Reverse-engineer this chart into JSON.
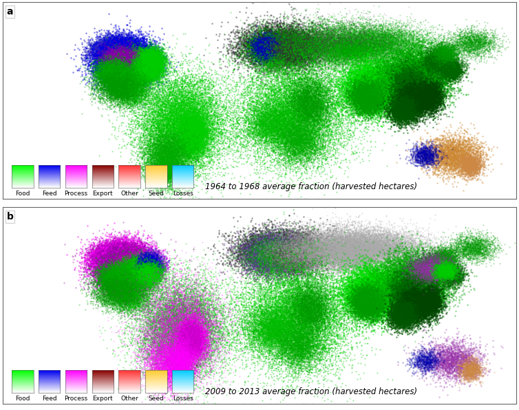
{
  "panel_a_label": "a",
  "panel_b_label": "b",
  "panel_a_title": "1964 to 1968 average fraction (harvested hectares)",
  "panel_b_title": "2009 to 2013 average fraction (harvested hectares)",
  "legend_labels": [
    "Food",
    "Feed",
    "Process",
    "Export",
    "Other",
    "Seed",
    "Losses"
  ],
  "legend_top_colors": [
    "#00ff00",
    "#0000ee",
    "#ff00ff",
    "#880000",
    "#ff3333",
    "#ffcc33",
    "#00ccff"
  ],
  "fig_width": 7.54,
  "fig_height": 5.96,
  "background_color": "#ffffff",
  "panel_label_fontsize": 10,
  "title_fontsize": 8.5,
  "legend_fontsize": 6.5,
  "map_regions_a": [
    {
      "lon": -100,
      "lat": 48,
      "slon": 8,
      "slat": 5,
      "color": "#3333bb",
      "alpha": 0.55,
      "n": 8000,
      "s": 3
    },
    {
      "lon": -95,
      "lat": 42,
      "slon": 10,
      "slat": 8,
      "color": "#0000dd",
      "alpha": 0.5,
      "n": 12000,
      "s": 3
    },
    {
      "lon": -87,
      "lat": 40,
      "slon": 6,
      "slat": 5,
      "color": "#0000cc",
      "alpha": 0.5,
      "n": 6000,
      "s": 3
    },
    {
      "lon": -82,
      "lat": 38,
      "slon": 5,
      "slat": 5,
      "color": "#00cc00",
      "alpha": 0.5,
      "n": 5000,
      "s": 3
    },
    {
      "lon": -90,
      "lat": 35,
      "slon": 8,
      "slat": 6,
      "color": "#00bb00",
      "alpha": 0.45,
      "n": 5000,
      "s": 3
    },
    {
      "lon": -98,
      "lat": 44,
      "slon": 6,
      "slat": 4,
      "color": "#8800aa",
      "alpha": 0.3,
      "n": 3000,
      "s": 3
    },
    {
      "lon": -75,
      "lat": 43,
      "slon": 4,
      "slat": 4,
      "color": "#00cc00",
      "alpha": 0.4,
      "n": 3000,
      "s": 3
    },
    {
      "lon": -78,
      "lat": 36,
      "slon": 5,
      "slat": 4,
      "color": "#00cc00",
      "alpha": 0.4,
      "n": 3000,
      "s": 3
    },
    {
      "lon": -102,
      "lat": 33,
      "slon": 7,
      "slat": 5,
      "color": "#00aa00",
      "alpha": 0.4,
      "n": 3000,
      "s": 3
    },
    {
      "lon": -90,
      "lat": 20,
      "slon": 7,
      "slat": 6,
      "color": "#00aa00",
      "alpha": 0.4,
      "n": 3000,
      "s": 2
    },
    {
      "lon": -100,
      "lat": 22,
      "slon": 8,
      "slat": 6,
      "color": "#009900",
      "alpha": 0.4,
      "n": 3000,
      "s": 2
    },
    {
      "lon": -55,
      "lat": -5,
      "slon": 15,
      "slat": 18,
      "color": "#00cc00",
      "alpha": 0.45,
      "n": 14000,
      "s": 2
    },
    {
      "lon": -47,
      "lat": -12,
      "slon": 5,
      "slat": 8,
      "color": "#00cc00",
      "alpha": 0.5,
      "n": 5000,
      "s": 2
    },
    {
      "lon": -65,
      "lat": -30,
      "slon": 8,
      "slat": 10,
      "color": "#00aa00",
      "alpha": 0.4,
      "n": 5000,
      "s": 2
    },
    {
      "lon": -68,
      "lat": -40,
      "slon": 5,
      "slat": 5,
      "color": "#00aa00",
      "alpha": 0.3,
      "n": 2000,
      "s": 2
    },
    {
      "lon": 15,
      "lat": 52,
      "slon": 15,
      "slat": 8,
      "color": "#222222",
      "alpha": 0.45,
      "n": 8000,
      "s": 3
    },
    {
      "lon": 10,
      "lat": 50,
      "slon": 10,
      "slat": 7,
      "color": "#00aa00",
      "alpha": 0.3,
      "n": 4000,
      "s": 3
    },
    {
      "lon": 5,
      "lat": 52,
      "slon": 5,
      "slat": 4,
      "color": "#0000bb",
      "alpha": 0.4,
      "n": 2000,
      "s": 3
    },
    {
      "lon": 25,
      "lat": 50,
      "slon": 8,
      "slat": 5,
      "color": "#333333",
      "alpha": 0.4,
      "n": 3000,
      "s": 3
    },
    {
      "lon": 55,
      "lat": 54,
      "slon": 22,
      "slat": 8,
      "color": "#00aa00",
      "alpha": 0.35,
      "n": 8000,
      "s": 2
    },
    {
      "lon": 85,
      "lat": 56,
      "slon": 18,
      "slat": 6,
      "color": "#00aa00",
      "alpha": 0.3,
      "n": 5000,
      "s": 2
    },
    {
      "lon": 55,
      "lat": 54,
      "slon": 22,
      "slat": 8,
      "color": "#444444",
      "alpha": 0.2,
      "n": 4000,
      "s": 2
    },
    {
      "lon": 65,
      "lat": 48,
      "slon": 12,
      "slat": 5,
      "color": "#00aa00",
      "alpha": 0.3,
      "n": 3000,
      "s": 2
    },
    {
      "lon": 25,
      "lat": 5,
      "slon": 20,
      "slat": 20,
      "color": "#00cc00",
      "alpha": 0.45,
      "n": 12000,
      "s": 2
    },
    {
      "lon": 35,
      "lat": 10,
      "slon": 8,
      "slat": 10,
      "color": "#009900",
      "alpha": 0.4,
      "n": 4000,
      "s": 2
    },
    {
      "lon": 10,
      "lat": -5,
      "slon": 10,
      "slat": 8,
      "color": "#00bb00",
      "alpha": 0.4,
      "n": 4000,
      "s": 2
    },
    {
      "lon": 28,
      "lat": -18,
      "slon": 8,
      "slat": 8,
      "color": "#00aa00",
      "alpha": 0.4,
      "n": 3000,
      "s": 2
    },
    {
      "lon": 80,
      "lat": 22,
      "slon": 10,
      "slat": 9,
      "color": "#00dd00",
      "alpha": 0.55,
      "n": 10000,
      "s": 3
    },
    {
      "lon": 76,
      "lat": 15,
      "slon": 6,
      "slat": 6,
      "color": "#009900",
      "alpha": 0.5,
      "n": 4000,
      "s": 3
    },
    {
      "lon": 108,
      "lat": 32,
      "slon": 12,
      "slat": 10,
      "color": "#00aa00",
      "alpha": 0.5,
      "n": 8000,
      "s": 3
    },
    {
      "lon": 115,
      "lat": 25,
      "slon": 8,
      "slat": 8,
      "color": "#009900",
      "alpha": 0.5,
      "n": 5000,
      "s": 3
    },
    {
      "lon": 105,
      "lat": 20,
      "slon": 6,
      "slat": 8,
      "color": "#006600",
      "alpha": 0.55,
      "n": 4000,
      "s": 3
    },
    {
      "lon": 108,
      "lat": 12,
      "slon": 5,
      "slat": 6,
      "color": "#004400",
      "alpha": 0.6,
      "n": 3000,
      "s": 3
    },
    {
      "lon": 100,
      "lat": 5,
      "slon": 5,
      "slat": 5,
      "color": "#005500",
      "alpha": 0.6,
      "n": 2000,
      "s": 3
    },
    {
      "lon": 120,
      "lat": 15,
      "slon": 4,
      "slat": 6,
      "color": "#004400",
      "alpha": 0.55,
      "n": 2000,
      "s": 3
    },
    {
      "lon": 135,
      "lat": 35,
      "slon": 4,
      "slat": 4,
      "color": "#006600",
      "alpha": 0.5,
      "n": 1500,
      "s": 3
    },
    {
      "lon": 125,
      "lat": 42,
      "slon": 5,
      "slat": 4,
      "color": "#006600",
      "alpha": 0.5,
      "n": 1500,
      "s": 3
    },
    {
      "lon": 130,
      "lat": 48,
      "slon": 5,
      "slat": 4,
      "color": "#009900",
      "alpha": 0.4,
      "n": 1500,
      "s": 2
    },
    {
      "lon": 150,
      "lat": 55,
      "slon": 8,
      "slat": 5,
      "color": "#009900",
      "alpha": 0.35,
      "n": 2000,
      "s": 2
    },
    {
      "lon": 135,
      "lat": -28,
      "slon": 10,
      "slat": 7,
      "color": "#cc8833",
      "alpha": 0.45,
      "n": 3000,
      "s": 3
    },
    {
      "lon": 148,
      "lat": -35,
      "slon": 4,
      "slat": 4,
      "color": "#cc8844",
      "alpha": 0.4,
      "n": 1500,
      "s": 3
    },
    {
      "lon": 116,
      "lat": -28,
      "slon": 5,
      "slat": 4,
      "color": "#0000aa",
      "alpha": 0.35,
      "n": 1000,
      "s": 3
    }
  ],
  "map_regions_b": [
    {
      "lon": -100,
      "lat": 48,
      "slon": 8,
      "slat": 5,
      "color": "#cc00cc",
      "alpha": 0.5,
      "n": 8000,
      "s": 3
    },
    {
      "lon": -95,
      "lat": 42,
      "slon": 10,
      "slat": 8,
      "color": "#ff00ff",
      "alpha": 0.5,
      "n": 12000,
      "s": 3
    },
    {
      "lon": -95,
      "lat": 42,
      "slon": 10,
      "slat": 8,
      "color": "#9900aa",
      "alpha": 0.35,
      "n": 8000,
      "s": 3
    },
    {
      "lon": -87,
      "lat": 40,
      "slon": 6,
      "slat": 5,
      "color": "#bb00bb",
      "alpha": 0.45,
      "n": 6000,
      "s": 3
    },
    {
      "lon": -82,
      "lat": 38,
      "slon": 5,
      "slat": 5,
      "color": "#00cc00",
      "alpha": 0.4,
      "n": 4000,
      "s": 3
    },
    {
      "lon": -90,
      "lat": 35,
      "slon": 8,
      "slat": 6,
      "color": "#00bb00",
      "alpha": 0.35,
      "n": 4000,
      "s": 3
    },
    {
      "lon": -75,
      "lat": 43,
      "slon": 4,
      "slat": 4,
      "color": "#9933cc",
      "alpha": 0.4,
      "n": 2000,
      "s": 3
    },
    {
      "lon": -77,
      "lat": 43,
      "slon": 4,
      "slat": 4,
      "color": "#0000cc",
      "alpha": 0.35,
      "n": 2000,
      "s": 3
    },
    {
      "lon": -78,
      "lat": 36,
      "slon": 5,
      "slat": 4,
      "color": "#00cc00",
      "alpha": 0.35,
      "n": 2500,
      "s": 3
    },
    {
      "lon": -102,
      "lat": 33,
      "slon": 7,
      "slat": 5,
      "color": "#00aa00",
      "alpha": 0.35,
      "n": 2500,
      "s": 3
    },
    {
      "lon": -90,
      "lat": 20,
      "slon": 7,
      "slat": 6,
      "color": "#00aa00",
      "alpha": 0.4,
      "n": 3000,
      "s": 2
    },
    {
      "lon": -100,
      "lat": 22,
      "slon": 8,
      "slat": 6,
      "color": "#009900",
      "alpha": 0.4,
      "n": 3000,
      "s": 2
    },
    {
      "lon": -55,
      "lat": -5,
      "slon": 15,
      "slat": 18,
      "color": "#00cc00",
      "alpha": 0.4,
      "n": 12000,
      "s": 2
    },
    {
      "lon": -55,
      "lat": -5,
      "slon": 15,
      "slat": 18,
      "color": "#ff00ff",
      "alpha": 0.25,
      "n": 8000,
      "s": 2
    },
    {
      "lon": -47,
      "lat": -12,
      "slon": 5,
      "slat": 8,
      "color": "#ff00ff",
      "alpha": 0.4,
      "n": 5000,
      "s": 2
    },
    {
      "lon": -48,
      "lat": -12,
      "slon": 4,
      "slat": 6,
      "color": "#cc00cc",
      "alpha": 0.35,
      "n": 3000,
      "s": 2
    },
    {
      "lon": -65,
      "lat": -30,
      "slon": 8,
      "slat": 10,
      "color": "#ff00ff",
      "alpha": 0.3,
      "n": 4000,
      "s": 2
    },
    {
      "lon": -55,
      "lat": -30,
      "slon": 5,
      "slat": 8,
      "color": "#ff00ff",
      "alpha": 0.35,
      "n": 3000,
      "s": 2
    },
    {
      "lon": 5,
      "lat": 52,
      "slon": 5,
      "slat": 4,
      "color": "#0000bb",
      "alpha": 0.45,
      "n": 2500,
      "s": 3
    },
    {
      "lon": 15,
      "lat": 52,
      "slon": 15,
      "slat": 8,
      "color": "#333333",
      "alpha": 0.5,
      "n": 8000,
      "s": 3
    },
    {
      "lon": 10,
      "lat": 50,
      "slon": 10,
      "slat": 7,
      "color": "#6633aa",
      "alpha": 0.35,
      "n": 5000,
      "s": 3
    },
    {
      "lon": 10,
      "lat": 50,
      "slon": 10,
      "slat": 7,
      "color": "#00aa00",
      "alpha": 0.2,
      "n": 3000,
      "s": 3
    },
    {
      "lon": 25,
      "lat": 50,
      "slon": 8,
      "slat": 5,
      "color": "#555555",
      "alpha": 0.4,
      "n": 3000,
      "s": 3
    },
    {
      "lon": 55,
      "lat": 54,
      "slon": 22,
      "slat": 8,
      "color": "#999999",
      "alpha": 0.35,
      "n": 8000,
      "s": 2
    },
    {
      "lon": 55,
      "lat": 54,
      "slon": 22,
      "slat": 8,
      "color": "#aaaaaa",
      "alpha": 0.25,
      "n": 6000,
      "s": 2
    },
    {
      "lon": 85,
      "lat": 56,
      "slon": 18,
      "slat": 6,
      "color": "#aaaaaa",
      "alpha": 0.3,
      "n": 5000,
      "s": 2
    },
    {
      "lon": 65,
      "lat": 48,
      "slon": 12,
      "slat": 5,
      "color": "#aaaaaa",
      "alpha": 0.3,
      "n": 3000,
      "s": 2
    },
    {
      "lon": 25,
      "lat": 5,
      "slon": 20,
      "slat": 20,
      "color": "#00cc00",
      "alpha": 0.45,
      "n": 12000,
      "s": 2
    },
    {
      "lon": 35,
      "lat": 10,
      "slon": 8,
      "slat": 10,
      "color": "#009900",
      "alpha": 0.4,
      "n": 4000,
      "s": 2
    },
    {
      "lon": 10,
      "lat": -5,
      "slon": 10,
      "slat": 8,
      "color": "#00bb00",
      "alpha": 0.4,
      "n": 4000,
      "s": 2
    },
    {
      "lon": 28,
      "lat": -18,
      "slon": 8,
      "slat": 8,
      "color": "#00aa00",
      "alpha": 0.4,
      "n": 3000,
      "s": 2
    },
    {
      "lon": 80,
      "lat": 22,
      "slon": 10,
      "slat": 9,
      "color": "#00dd00",
      "alpha": 0.55,
      "n": 10000,
      "s": 3
    },
    {
      "lon": 76,
      "lat": 15,
      "slon": 6,
      "slat": 6,
      "color": "#009900",
      "alpha": 0.5,
      "n": 4000,
      "s": 3
    },
    {
      "lon": 108,
      "lat": 32,
      "slon": 12,
      "slat": 10,
      "color": "#00aa00",
      "alpha": 0.45,
      "n": 7000,
      "s": 3
    },
    {
      "lon": 115,
      "lat": 25,
      "slon": 8,
      "slat": 8,
      "color": "#009900",
      "alpha": 0.45,
      "n": 4000,
      "s": 3
    },
    {
      "lon": 105,
      "lat": 20,
      "slon": 6,
      "slat": 8,
      "color": "#006600",
      "alpha": 0.55,
      "n": 4000,
      "s": 3
    },
    {
      "lon": 108,
      "lat": 12,
      "slon": 5,
      "slat": 6,
      "color": "#004400",
      "alpha": 0.6,
      "n": 3000,
      "s": 3
    },
    {
      "lon": 100,
      "lat": 5,
      "slon": 5,
      "slat": 5,
      "color": "#005500",
      "alpha": 0.6,
      "n": 2000,
      "s": 3
    },
    {
      "lon": 120,
      "lat": 15,
      "slon": 4,
      "slat": 6,
      "color": "#004400",
      "alpha": 0.55,
      "n": 2000,
      "s": 3
    },
    {
      "lon": 135,
      "lat": 35,
      "slon": 4,
      "slat": 4,
      "color": "#006600",
      "alpha": 0.5,
      "n": 1500,
      "s": 3
    },
    {
      "lon": 125,
      "lat": 42,
      "slon": 5,
      "slat": 4,
      "color": "#006600",
      "alpha": 0.5,
      "n": 1500,
      "s": 3
    },
    {
      "lon": 130,
      "lat": 48,
      "slon": 5,
      "slat": 4,
      "color": "#009900",
      "alpha": 0.4,
      "n": 1500,
      "s": 2
    },
    {
      "lon": 150,
      "lat": 55,
      "slon": 8,
      "slat": 5,
      "color": "#009900",
      "alpha": 0.35,
      "n": 2000,
      "s": 2
    },
    {
      "lon": 120,
      "lat": 40,
      "slon": 8,
      "slat": 5,
      "color": "#9933aa",
      "alpha": 0.3,
      "n": 3000,
      "s": 2
    },
    {
      "lon": 130,
      "lat": 38,
      "slon": 4,
      "slat": 3,
      "color": "#00cc00",
      "alpha": 0.4,
      "n": 1500,
      "s": 3
    },
    {
      "lon": 135,
      "lat": -28,
      "slon": 10,
      "slat": 7,
      "color": "#9933aa",
      "alpha": 0.35,
      "n": 2500,
      "s": 3
    },
    {
      "lon": 148,
      "lat": -35,
      "slon": 4,
      "slat": 4,
      "color": "#cc8844",
      "alpha": 0.3,
      "n": 1200,
      "s": 3
    },
    {
      "lon": 116,
      "lat": -28,
      "slon": 5,
      "slat": 4,
      "color": "#0000aa",
      "alpha": 0.3,
      "n": 800,
      "s": 3
    }
  ]
}
